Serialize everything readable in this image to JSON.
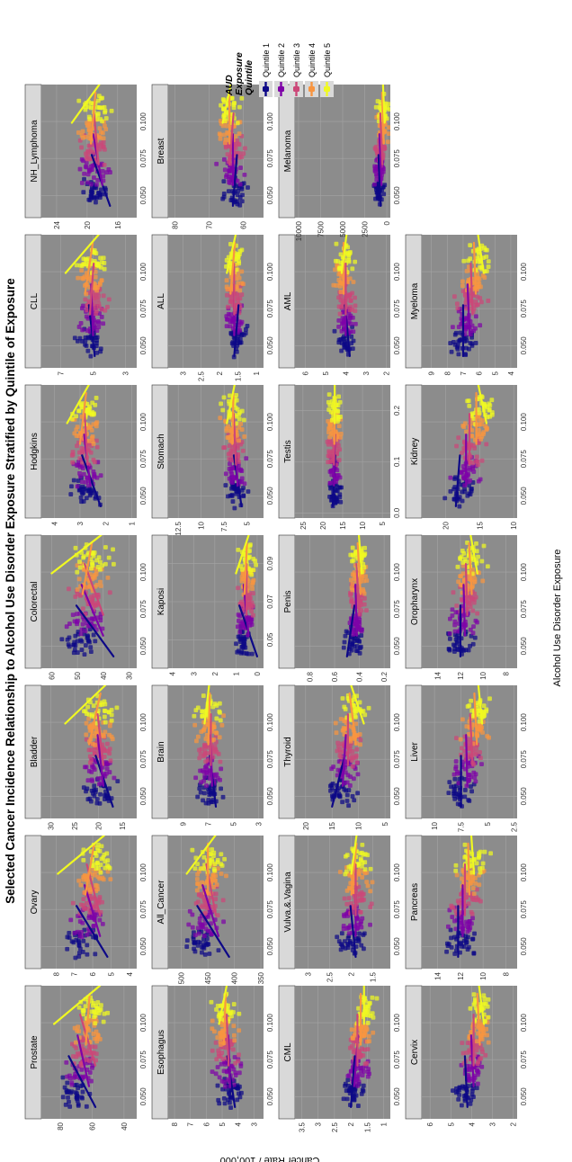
{
  "title": "Selected Cancer Incidence Relationship to Alcohol Use Disorder Exposure Stratified by Quintile of Exposure",
  "xlabel": "Alcohol Use Disorder Exposure",
  "ylabel": "Cancer Rate / 100,000",
  "legend": {
    "title": [
      "AUD",
      "Exposure",
      "Quintile"
    ],
    "items": [
      {
        "label": "Quintile 1",
        "color": "#0d0887"
      },
      {
        "label": "Quintile 2",
        "color": "#7e03a8"
      },
      {
        "label": "Quintile 3",
        "color": "#cc4778"
      },
      {
        "label": "Quintile 4",
        "color": "#f89540"
      },
      {
        "label": "Quintile 5",
        "color": "#f0f921"
      }
    ]
  },
  "colors": {
    "panel_bg": "#8c8c8c",
    "strip_bg": "#d9d9d9",
    "grid": "#a4a4a4"
  },
  "chart_data": [
    {
      "type": "scatter",
      "title": "Prostate",
      "yticks": [
        40,
        60,
        80
      ],
      "ylim": [
        32,
        92
      ],
      "xticks": [
        "0.050",
        "0.075",
        "0.100"
      ],
      "xlim": [
        0.035,
        0.125
      ],
      "ymid": 60,
      "yspread": 10,
      "ytop": 84,
      "ybot": 48,
      "smooth": [
        [
          72,
          58
        ],
        [
          68,
          62
        ],
        [
          66,
          58
        ],
        [
          62,
          64
        ],
        [
          60,
          84
        ]
      ]
    },
    {
      "type": "scatter",
      "title": "Ovary",
      "yticks": [
        4,
        5,
        6,
        7,
        8
      ],
      "ylim": [
        3.6,
        8.8
      ],
      "xticks": [
        "0.050",
        "0.075",
        "0.100"
      ],
      "xlim": [
        0.035,
        0.125
      ],
      "ymid": 6,
      "yspread": 0.9,
      "ytop": 7.9,
      "ybot": 5.1,
      "smooth": [
        [
          6.6,
          5.2
        ],
        [
          6.3,
          5.6
        ],
        [
          6.2,
          5.6
        ],
        [
          6.0,
          6.4
        ],
        [
          5.8,
          7.9
        ]
      ]
    },
    {
      "type": "scatter",
      "title": "Bladder",
      "yticks": [
        15,
        20,
        25,
        30
      ],
      "ylim": [
        12,
        32
      ],
      "xticks": [
        "0.050",
        "0.075",
        "0.100"
      ],
      "xlim": [
        0.035,
        0.125
      ],
      "ymid": 20,
      "yspread": 3.5,
      "ytop": 27,
      "ybot": 16,
      "smooth": [
        [
          20,
          17
        ],
        [
          20,
          19
        ],
        [
          20,
          19
        ],
        [
          20,
          22
        ],
        [
          20,
          27
        ]
      ]
    },
    {
      "type": "scatter",
      "title": "Colorectal",
      "yticks": [
        30,
        40,
        50,
        60
      ],
      "ylim": [
        27,
        64
      ],
      "xticks": [
        "0.050",
        "0.075",
        "0.100"
      ],
      "xlim": [
        0.035,
        0.125
      ],
      "ymid": 45,
      "yspread": 7,
      "ytop": 60,
      "ybot": 36,
      "smooth": [
        [
          48,
          36
        ],
        [
          47,
          40
        ],
        [
          46,
          40
        ],
        [
          45,
          48
        ],
        [
          44,
          60
        ]
      ]
    },
    {
      "type": "scatter",
      "title": "Hodgkins",
      "yticks": [
        1,
        2,
        3,
        4
      ],
      "ylim": [
        0.8,
        4.5
      ],
      "xticks": [
        "0.050",
        "0.075",
        "0.100"
      ],
      "xlim": [
        0.035,
        0.125
      ],
      "ymid": 2.8,
      "yspread": 0.6,
      "ytop": 3.5,
      "ybot": 2.2,
      "smooth": [
        [
          2.8,
          2.2
        ],
        [
          2.8,
          2.6
        ],
        [
          2.8,
          2.7
        ],
        [
          2.8,
          3.0
        ],
        [
          2.8,
          3.5
        ]
      ]
    },
    {
      "type": "scatter",
      "title": "CLL",
      "yticks": [
        3,
        5,
        7
      ],
      "ylim": [
        2.3,
        8.2
      ],
      "xticks": [
        "0.050",
        "0.075",
        "0.100"
      ],
      "xlim": [
        0.035,
        0.125
      ],
      "ymid": 5,
      "yspread": 0.9,
      "ytop": 6.7,
      "ybot": 4.9,
      "smooth": [
        [
          5.2,
          4.9
        ],
        [
          5.1,
          5.0
        ],
        [
          5.0,
          5.2
        ],
        [
          5.1,
          5.5
        ],
        [
          5.0,
          6.7
        ]
      ]
    },
    {
      "type": "scatter",
      "title": "NH_Lymphoma",
      "yticks": [
        16,
        20,
        24
      ],
      "ylim": [
        13.5,
        26
      ],
      "xticks": [
        "0.050",
        "0.075",
        "0.100"
      ],
      "xlim": [
        0.035,
        0.125
      ],
      "ymid": 19,
      "yspread": 2.2,
      "ytop": 22,
      "ybot": 17,
      "smooth": [
        [
          19,
          17
        ],
        [
          19,
          18
        ],
        [
          19,
          18.5
        ],
        [
          19,
          19.5
        ],
        [
          19,
          22
        ]
      ]
    },
    {
      "type": "scatter",
      "title": "Esophagus",
      "yticks": [
        3,
        4,
        5,
        6,
        7,
        8
      ],
      "ylim": [
        2.4,
        8.4
      ],
      "xticks": [
        "0.050",
        "0.075",
        "0.100"
      ],
      "xlim": [
        0.035,
        0.125
      ],
      "ymid": 4.8,
      "yspread": 0.9,
      "ytop": 5.2,
      "ybot": 4.2,
      "smooth": [
        [
          4.6,
          4.2
        ],
        [
          4.6,
          4.5
        ],
        [
          4.7,
          4.6
        ],
        [
          4.8,
          4.9
        ],
        [
          4.8,
          5.2
        ]
      ]
    },
    {
      "type": "scatter",
      "title": "All_Cancer",
      "yticks": [
        350,
        400,
        450,
        500
      ],
      "ylim": [
        345,
        525
      ],
      "xticks": [
        "0.050",
        "0.075",
        "0.100"
      ],
      "xlim": [
        0.035,
        0.125
      ],
      "ymid": 440,
      "yspread": 30,
      "ytop": 490,
      "ybot": 410,
      "smooth": [
        [
          460,
          410
        ],
        [
          455,
          430
        ],
        [
          450,
          435
        ],
        [
          450,
          450
        ],
        [
          445,
          490
        ]
      ]
    },
    {
      "type": "scatter",
      "title": "Brain",
      "yticks": [
        3,
        5,
        7,
        9
      ],
      "ylim": [
        2.6,
        10.2
      ],
      "xticks": [
        "0.050",
        "0.075",
        "0.100"
      ],
      "xlim": [
        0.035,
        0.125
      ],
      "ymid": 6.8,
      "yspread": 1.1,
      "ytop": 7.3,
      "ybot": 6.4,
      "smooth": [
        [
          6.8,
          6.4
        ],
        [
          6.8,
          6.7
        ],
        [
          6.8,
          6.8
        ],
        [
          6.9,
          7.0
        ],
        [
          7.0,
          7.3
        ]
      ]
    },
    {
      "type": "scatter",
      "title": "Kaposi",
      "yticks": [
        0,
        1,
        2,
        3,
        4
      ],
      "ylim": [
        -0.3,
        4.2
      ],
      "xticks": [
        "0.05",
        "0.07",
        "0.09"
      ],
      "xlim": [
        0.035,
        0.105
      ],
      "ymid": 0.5,
      "yspread": 0.4,
      "ytop": 1.0,
      "ybot": 0.0,
      "smooth": [
        [
          0.7,
          0.0
        ],
        [
          0.6,
          0.4
        ],
        [
          0.5,
          0.5
        ],
        [
          0.5,
          0.6
        ],
        [
          0.5,
          1.0
        ]
      ]
    },
    {
      "type": "scatter",
      "title": "Stomach",
      "yticks": [
        5,
        7.5,
        10,
        12.5
      ],
      "ylim": [
        3.2,
        13.6
      ],
      "xticks": [
        "0.050",
        "0.075",
        "0.100"
      ],
      "xlim": [
        0.035,
        0.125
      ],
      "ymid": 6.5,
      "yspread": 1.2,
      "ytop": 7.2,
      "ybot": 5.6,
      "smooth": [
        [
          6.3,
          5.6
        ],
        [
          6.3,
          6.0
        ],
        [
          6.4,
          6.2
        ],
        [
          6.5,
          6.6
        ],
        [
          6.5,
          7.2
        ]
      ]
    },
    {
      "type": "scatter",
      "title": "ALL",
      "yticks": [
        1.0,
        1.5,
        2.0,
        2.5,
        3.0
      ],
      "ylim": [
        0.8,
        3.4
      ],
      "xticks": [
        "0.050",
        "0.075",
        "0.100"
      ],
      "xlim": [
        0.035,
        0.125
      ],
      "ymid": 1.6,
      "yspread": 0.25,
      "ytop": 1.8,
      "ybot": 1.5,
      "smooth": [
        [
          1.5,
          1.6
        ],
        [
          1.6,
          1.6
        ],
        [
          1.6,
          1.6
        ],
        [
          1.6,
          1.7
        ],
        [
          1.6,
          1.8
        ]
      ]
    },
    {
      "type": "scatter",
      "title": "Breast",
      "yticks": [
        60,
        70,
        80
      ],
      "ylim": [
        54,
        82
      ],
      "xticks": [
        "0.050",
        "0.075",
        "0.100"
      ],
      "xlim": [
        0.035,
        0.125
      ],
      "ymid": 64,
      "yspread": 4,
      "ytop": 66,
      "ybot": 62,
      "smooth": [
        [
          62,
          63
        ],
        [
          63,
          63
        ],
        [
          63,
          64
        ],
        [
          64,
          64
        ],
        [
          64,
          66
        ]
      ]
    },
    {
      "type": "scatter",
      "title": "CML",
      "yticks": [
        1.0,
        1.5,
        2.0,
        2.5,
        3.0,
        3.5
      ],
      "ylim": [
        0.8,
        3.7
      ],
      "xticks": [
        "0.050",
        "0.075",
        "0.100"
      ],
      "xlim": [
        0.035,
        0.125
      ],
      "ymid": 1.7,
      "yspread": 0.35,
      "ytop": 1.6,
      "ybot": 2.0,
      "smooth": [
        [
          1.9,
          2.0
        ],
        [
          1.8,
          1.9
        ],
        [
          1.8,
          1.8
        ],
        [
          1.7,
          1.7
        ],
        [
          1.6,
          1.6
        ]
      ]
    },
    {
      "type": "scatter",
      "title": "Vulva.&.Vagina",
      "yticks": [
        1.5,
        2.0,
        2.5,
        3.0
      ],
      "ylim": [
        1.1,
        3.3
      ],
      "xticks": [
        "0.050",
        "0.075",
        "0.100"
      ],
      "xlim": [
        0.035,
        0.125
      ],
      "ymid": 1.9,
      "yspread": 0.35,
      "ytop": 2.0,
      "ybot": 1.9,
      "smooth": [
        [
          2.0,
          1.9
        ],
        [
          1.9,
          1.9
        ],
        [
          1.9,
          1.9
        ],
        [
          1.9,
          2.0
        ],
        [
          1.9,
          2.0
        ]
      ]
    },
    {
      "type": "scatter",
      "title": "Thyroid",
      "yticks": [
        5,
        10,
        15,
        20
      ],
      "ylim": [
        4,
        22
      ],
      "xticks": [
        "0.050",
        "0.075",
        "0.100"
      ],
      "xlim": [
        0.035,
        0.125
      ],
      "ymid": 12,
      "yspread": 2.8,
      "ytop": 9,
      "ybot": 15,
      "smooth": [
        [
          13,
          15
        ],
        [
          12.5,
          13
        ],
        [
          12,
          12
        ],
        [
          11.5,
          10.5
        ],
        [
          11,
          9
        ]
      ]
    },
    {
      "type": "scatter",
      "title": "Penis",
      "yticks": [
        0.2,
        0.4,
        0.6,
        0.8
      ],
      "ylim": [
        0.15,
        0.92
      ],
      "xticks": [
        "0.050",
        "0.075",
        "0.100"
      ],
      "xlim": [
        0.035,
        0.125
      ],
      "ymid": 0.42,
      "yspread": 0.08,
      "ytop": 0.38,
      "ybot": 0.5,
      "smooth": [
        [
          0.45,
          0.5
        ],
        [
          0.43,
          0.42
        ],
        [
          0.42,
          0.4
        ],
        [
          0.41,
          0.39
        ],
        [
          0.4,
          0.38
        ]
      ]
    },
    {
      "type": "scatter",
      "title": "Testis",
      "yticks": [
        5,
        10,
        15,
        20,
        25
      ],
      "ylim": [
        3,
        27
      ],
      "xticks": [
        "0.0",
        "0.1",
        "0.2"
      ],
      "xlim": [
        -0.01,
        0.25
      ],
      "ymid": 17,
      "yspread": 2,
      "ytop": 17,
      "ybot": 17.5,
      "smooth": [
        [
          17,
          17.5
        ],
        [
          17,
          17.2
        ],
        [
          17,
          17.2
        ],
        [
          17,
          17.1
        ],
        [
          17,
          17
        ]
      ]
    },
    {
      "type": "scatter",
      "title": "AML",
      "yticks": [
        2,
        3,
        4,
        5,
        6
      ],
      "ylim": [
        1.8,
        6.5
      ],
      "xticks": [
        "0.050",
        "0.075",
        "0.100"
      ],
      "xlim": [
        0.035,
        0.125
      ],
      "ymid": 4.0,
      "yspread": 0.5,
      "ytop": 4.2,
      "ybot": 3.8,
      "smooth": [
        [
          4.0,
          3.8
        ],
        [
          4.0,
          4.0
        ],
        [
          4.0,
          4.0
        ],
        [
          4.1,
          4.1
        ],
        [
          4.0,
          4.2
        ]
      ]
    },
    {
      "type": "scatter",
      "title": "Melanoma",
      "yticks": [
        0,
        2500,
        5000,
        7500,
        10000
      ],
      "ylim": [
        -400,
        10400
      ],
      "xticks": [
        "0.050",
        "0.075",
        "0.100"
      ],
      "xlim": [
        0.035,
        0.125
      ],
      "ymid": 900,
      "yspread": 700,
      "ytop": 250,
      "ybot": 700,
      "smooth": [
        [
          900,
          700
        ],
        [
          800,
          600
        ],
        [
          700,
          500
        ],
        [
          500,
          350
        ],
        [
          400,
          250
        ]
      ]
    },
    {
      "type": "scatter",
      "title": "Cervix",
      "yticks": [
        2,
        3,
        4,
        5,
        6
      ],
      "ylim": [
        1.8,
        6.4
      ],
      "xticks": [
        "0.050",
        "0.075",
        "0.100"
      ],
      "xlim": [
        0.035,
        0.125
      ],
      "ymid": 3.9,
      "yspread": 0.6,
      "ytop": 3.4,
      "ybot": 4.2,
      "smooth": [
        [
          4.3,
          4.2
        ],
        [
          4.0,
          3.9
        ],
        [
          3.9,
          3.9
        ],
        [
          3.7,
          3.6
        ],
        [
          3.6,
          3.4
        ]
      ]
    },
    {
      "type": "scatter",
      "title": "Pancreas",
      "yticks": [
        8,
        10,
        12,
        14
      ],
      "ylim": [
        7,
        15.4
      ],
      "xticks": [
        "0.050",
        "0.075",
        "0.100"
      ],
      "xlim": [
        0.035,
        0.125
      ],
      "ymid": 11.5,
      "yspread": 1.4,
      "ytop": 10.8,
      "ybot": 12.2,
      "smooth": [
        [
          12.2,
          12.2
        ],
        [
          11.8,
          11.8
        ],
        [
          11.6,
          11.6
        ],
        [
          11.3,
          11.2
        ],
        [
          11,
          10.8
        ]
      ]
    },
    {
      "type": "scatter",
      "title": "Liver",
      "yticks": [
        2.5,
        5.0,
        7.5,
        10.0
      ],
      "ylim": [
        2.2,
        11.2
      ],
      "xticks": [
        "0.050",
        "0.075",
        "0.100"
      ],
      "xlim": [
        0.035,
        0.125
      ],
      "ymid": 6.8,
      "yspread": 1.4,
      "ytop": 5.5,
      "ybot": 7.5,
      "smooth": [
        [
          7.5,
          7.5
        ],
        [
          7.0,
          6.9
        ],
        [
          6.6,
          6.4
        ],
        [
          6.2,
          6.0
        ],
        [
          5.8,
          5.5
        ]
      ]
    },
    {
      "type": "scatter",
      "title": "Oropharynx",
      "yticks": [
        8,
        10,
        12,
        14
      ],
      "ylim": [
        7,
        15.4
      ],
      "xticks": [
        "0.050",
        "0.075",
        "0.100"
      ],
      "xlim": [
        0.035,
        0.125
      ],
      "ymid": 11.5,
      "yspread": 1.4,
      "ytop": 10.5,
      "ybot": 12.0,
      "smooth": [
        [
          12.0,
          12.0
        ],
        [
          11.7,
          11.6
        ],
        [
          11.5,
          11.4
        ],
        [
          11.2,
          11.0
        ],
        [
          11,
          10.5
        ]
      ]
    },
    {
      "type": "scatter",
      "title": "Kidney",
      "yticks": [
        10,
        15,
        20
      ],
      "ylim": [
        9.5,
        23.5
      ],
      "xticks": [
        "0.050",
        "0.075",
        "0.100"
      ],
      "xlim": [
        0.035,
        0.125
      ],
      "ymid": 16.5,
      "yspread": 2.2,
      "ytop": 14,
      "ybot": 18.5,
      "smooth": [
        [
          18,
          18.5
        ],
        [
          17,
          17
        ],
        [
          16.5,
          16.5
        ],
        [
          15.5,
          15.5
        ],
        [
          15,
          14
        ]
      ]
    },
    {
      "type": "scatter",
      "title": "Myeloma",
      "yticks": [
        4,
        5,
        6,
        7,
        8,
        9
      ],
      "ylim": [
        3.6,
        9.6
      ],
      "xticks": [
        "0.050",
        "0.075",
        "0.100"
      ],
      "xlim": [
        0.035,
        0.125
      ],
      "ymid": 6.5,
      "yspread": 0.9,
      "ytop": 5.7,
      "ybot": 7.0,
      "smooth": [
        [
          7.0,
          7.0
        ],
        [
          6.7,
          6.6
        ],
        [
          6.5,
          6.4
        ],
        [
          6.3,
          6.2
        ],
        [
          6.0,
          5.7
        ]
      ]
    }
  ]
}
